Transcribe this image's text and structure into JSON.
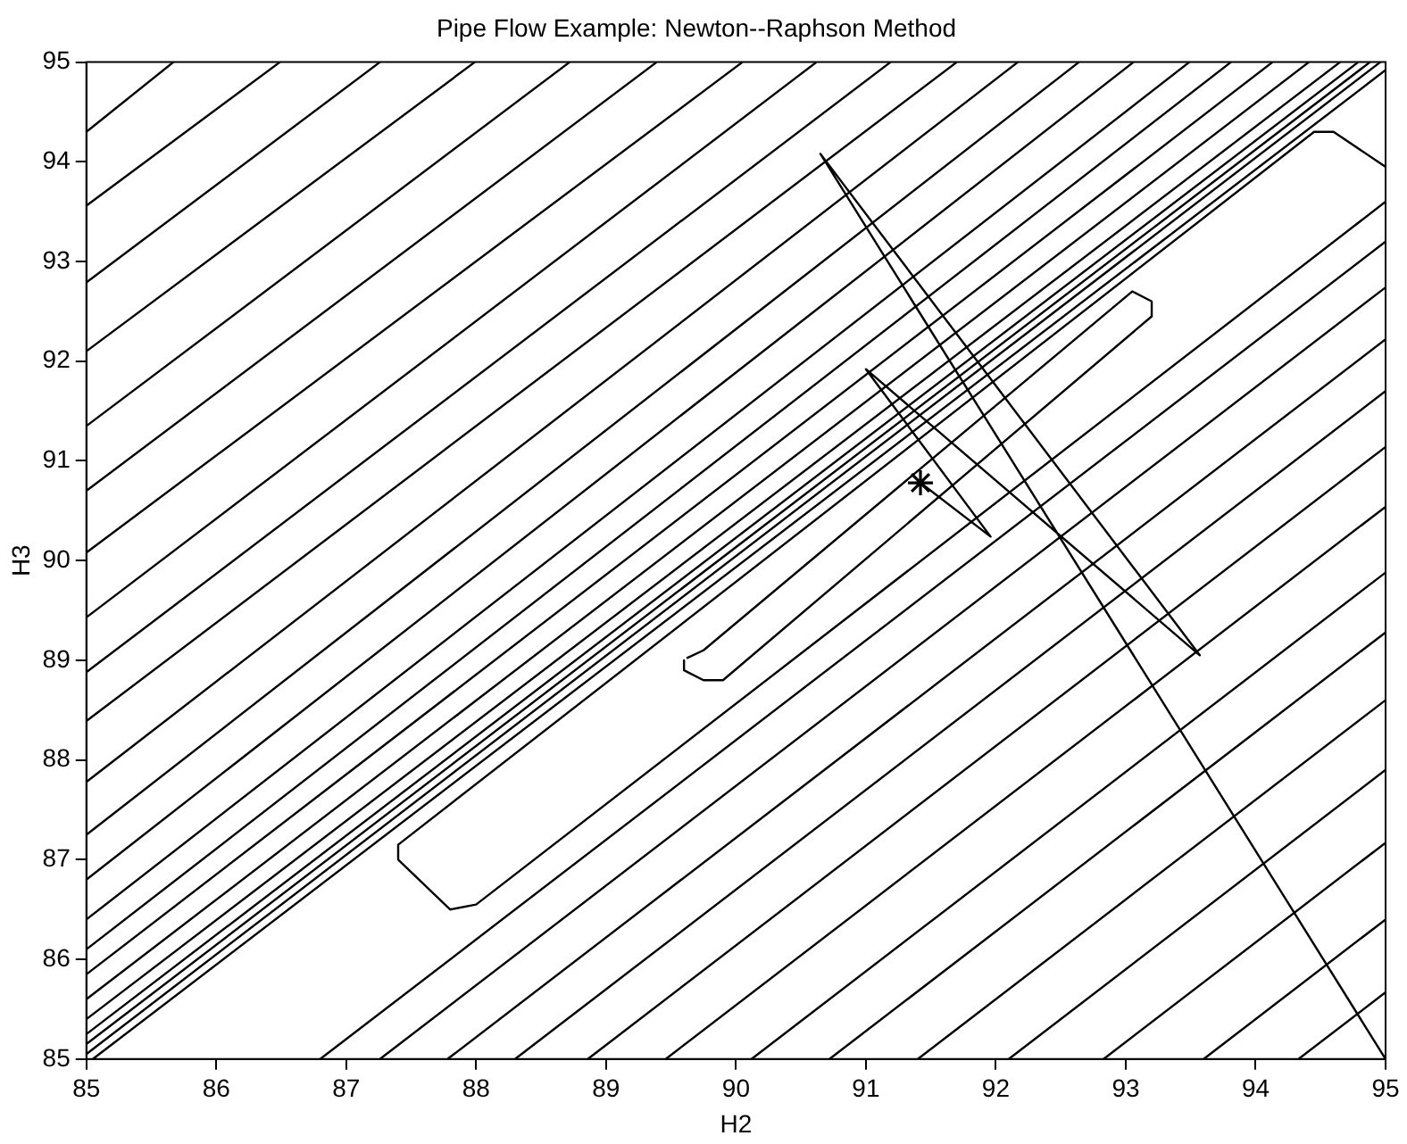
{
  "chart_data": {
    "type": "line",
    "title": "Pipe Flow Example: Newton--Raphson Method",
    "xlabel": "H2",
    "ylabel": "H3",
    "xlim": [
      85,
      95
    ],
    "ylim": [
      85,
      95
    ],
    "xticks": [
      85,
      86,
      87,
      88,
      89,
      90,
      91,
      92,
      93,
      94,
      95
    ],
    "yticks": [
      85,
      86,
      87,
      88,
      89,
      90,
      91,
      92,
      93,
      94,
      95
    ],
    "grid": false,
    "legend": false,
    "series": [
      {
        "color": "#000000",
        "x": [
          85,
          85.67
        ],
        "values": [
          94.3,
          95
        ]
      },
      {
        "color": "#000000",
        "x": [
          85,
          86.49
        ],
        "values": [
          93.56,
          95
        ]
      },
      {
        "color": "#000000",
        "x": [
          85,
          87.26
        ],
        "values": [
          92.79,
          95
        ]
      },
      {
        "color": "#000000",
        "x": [
          85,
          87.99
        ],
        "values": [
          92.1,
          95
        ]
      },
      {
        "color": "#000000",
        "x": [
          85,
          88.72
        ],
        "values": [
          91.35,
          95
        ]
      },
      {
        "color": "#000000",
        "x": [
          85,
          89.39
        ],
        "values": [
          90.7,
          95
        ]
      },
      {
        "color": "#000000",
        "x": [
          85,
          90.05
        ],
        "values": [
          90.08,
          95
        ]
      },
      {
        "color": "#000000",
        "x": [
          85,
          90.62
        ],
        "values": [
          89.43,
          95
        ]
      },
      {
        "color": "#000000",
        "x": [
          85,
          91.19
        ],
        "values": [
          88.88,
          95
        ]
      },
      {
        "color": "#000000",
        "x": [
          85,
          91.7
        ],
        "values": [
          88.39,
          95
        ]
      },
      {
        "color": "#000000",
        "x": [
          85,
          92.17
        ],
        "values": [
          87.78,
          95
        ]
      },
      {
        "color": "#000000",
        "x": [
          85,
          92.64
        ],
        "values": [
          87.25,
          95
        ]
      },
      {
        "color": "#000000",
        "x": [
          85,
          93.06
        ],
        "values": [
          86.8,
          95
        ]
      },
      {
        "color": "#000000",
        "x": [
          85,
          93.49
        ],
        "values": [
          86.4,
          95
        ]
      },
      {
        "color": "#000000",
        "x": [
          85,
          93.81
        ],
        "values": [
          86.1,
          95
        ]
      },
      {
        "color": "#000000",
        "x": [
          85,
          94.13
        ],
        "values": [
          85.85,
          95
        ]
      },
      {
        "color": "#000000",
        "x": [
          85,
          94.41
        ],
        "values": [
          85.6,
          95
        ]
      },
      {
        "color": "#000000",
        "x": [
          85,
          94.65
        ],
        "values": [
          85.4,
          95
        ]
      },
      {
        "color": "#000000",
        "x": [
          85,
          94.79
        ],
        "values": [
          85.25,
          95
        ]
      },
      {
        "color": "#000000",
        "x": [
          85,
          94.88
        ],
        "values": [
          85.15,
          95
        ]
      },
      {
        "color": "#000000",
        "x": [
          85,
          94.96
        ],
        "values": [
          85.05,
          95
        ]
      },
      {
        "color": "#000000",
        "x": [
          85.05,
          95
        ],
        "values": [
          85,
          94.92
        ]
      },
      {
        "color": "#000000",
        "x": [
          95,
          94.6,
          94.45,
          87.4,
          87.4,
          87.8,
          88,
          95
        ],
        "values": [
          93.95,
          94.3,
          94.3,
          87.15,
          87,
          86.5,
          86.55,
          93.6
        ]
      },
      {
        "color": "#000000",
        "x": [
          89.6,
          89.6,
          89.75,
          89.9,
          93.2,
          93.2,
          93.05,
          89.75,
          89.62
        ],
        "values": [
          89,
          88.9,
          88.8,
          88.8,
          92.45,
          92.6,
          92.7,
          89.1,
          89.02
        ]
      },
      {
        "color": "#000000",
        "x": [
          86.8,
          95
        ],
        "values": [
          85,
          93.2
        ]
      },
      {
        "color": "#000000",
        "x": [
          87.26,
          95
        ],
        "values": [
          85,
          92.74
        ]
      },
      {
        "color": "#000000",
        "x": [
          87.78,
          95
        ],
        "values": [
          85,
          92.22
        ]
      },
      {
        "color": "#000000",
        "x": [
          88.3,
          95
        ],
        "values": [
          85,
          91.7
        ]
      },
      {
        "color": "#000000",
        "x": [
          88.86,
          95
        ],
        "values": [
          85,
          91.14
        ]
      },
      {
        "color": "#000000",
        "x": [
          89.46,
          95
        ],
        "values": [
          85,
          90.54
        ]
      },
      {
        "color": "#000000",
        "x": [
          90.12,
          95
        ],
        "values": [
          85,
          89.88
        ]
      },
      {
        "color": "#000000",
        "x": [
          90.72,
          95
        ],
        "values": [
          85,
          89.28
        ]
      },
      {
        "color": "#000000",
        "x": [
          91.4,
          95
        ],
        "values": [
          85,
          88.6
        ]
      },
      {
        "color": "#000000",
        "x": [
          92.1,
          95
        ],
        "values": [
          85,
          87.9
        ]
      },
      {
        "color": "#000000",
        "x": [
          92.83,
          95
        ],
        "values": [
          85,
          87.17
        ]
      },
      {
        "color": "#000000",
        "x": [
          93.6,
          95
        ],
        "values": [
          85,
          86.4
        ]
      },
      {
        "color": "#000000",
        "x": [
          94.33,
          95
        ],
        "values": [
          85,
          85.67
        ]
      },
      {
        "color": "#000000",
        "x": [
          95,
          90.65,
          93.57,
          91,
          91.96,
          91.42
        ],
        "values": [
          85,
          94.08,
          89.05,
          91.92,
          90.24,
          90.78
        ]
      },
      {
        "type": "scatter",
        "marker": "cross",
        "color": "#000000",
        "x": [
          91.42
        ],
        "values": [
          90.78
        ]
      }
    ]
  }
}
